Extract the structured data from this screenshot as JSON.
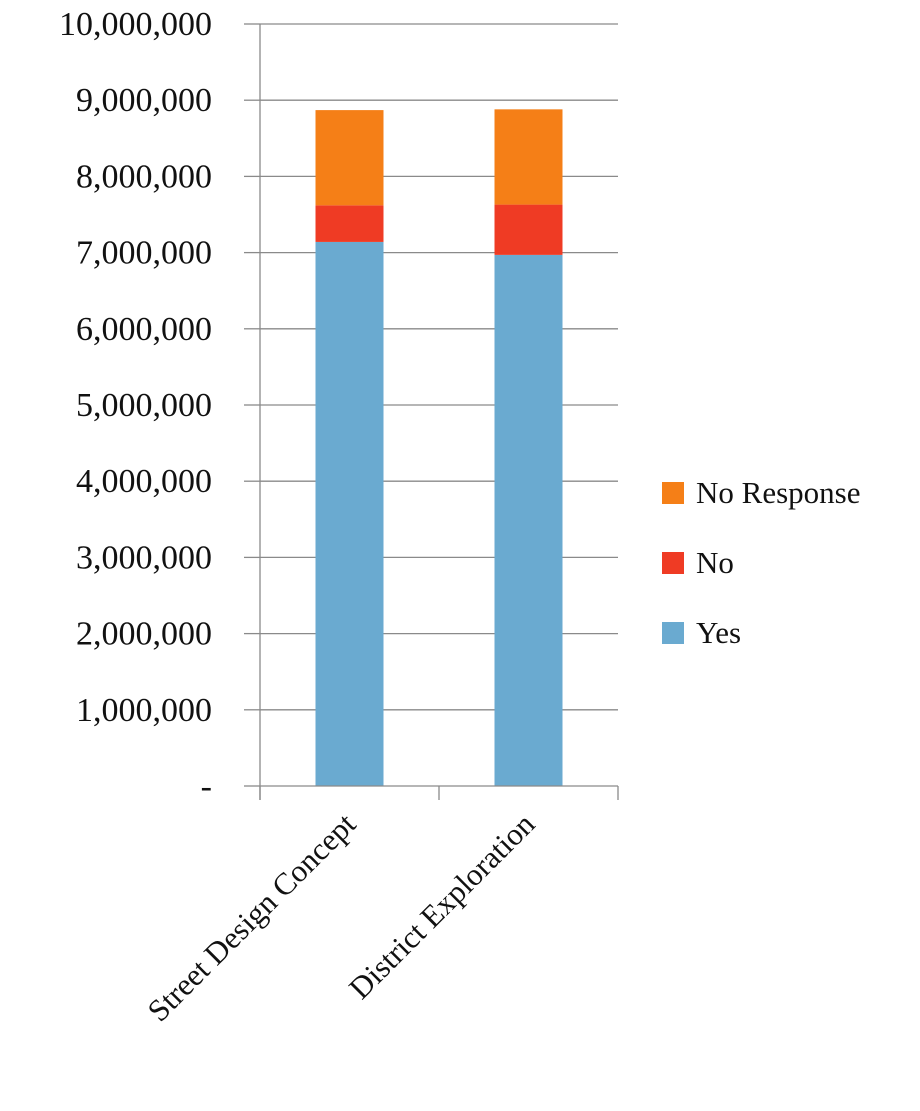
{
  "chart_data": {
    "type": "bar",
    "stacked": true,
    "title": "",
    "xlabel": "",
    "ylabel": "",
    "categories": [
      "Street Design Concept",
      "District Exploration"
    ],
    "series": [
      {
        "name": "Yes",
        "color": "#6aaad0",
        "values": [
          7140000,
          6970000
        ]
      },
      {
        "name": "No",
        "color": "#ef3b24",
        "values": [
          480000,
          660000
        ]
      },
      {
        "name": "No Response",
        "color": "#f57f17",
        "values": [
          1250000,
          1250000
        ]
      }
    ],
    "ylim": [
      0,
      10000000
    ],
    "yticks": [
      0,
      1000000,
      2000000,
      3000000,
      4000000,
      5000000,
      6000000,
      7000000,
      8000000,
      9000000,
      10000000
    ],
    "ytick_labels": [
      "-",
      "1,000,000",
      "2,000,000",
      "3,000,000",
      "4,000,000",
      "5,000,000",
      "6,000,000",
      "7,000,000",
      "8,000,000",
      "9,000,000",
      "10,000,000"
    ],
    "grid": true,
    "legend": {
      "position": "right",
      "order": [
        "No Response",
        "No",
        "Yes"
      ]
    }
  }
}
